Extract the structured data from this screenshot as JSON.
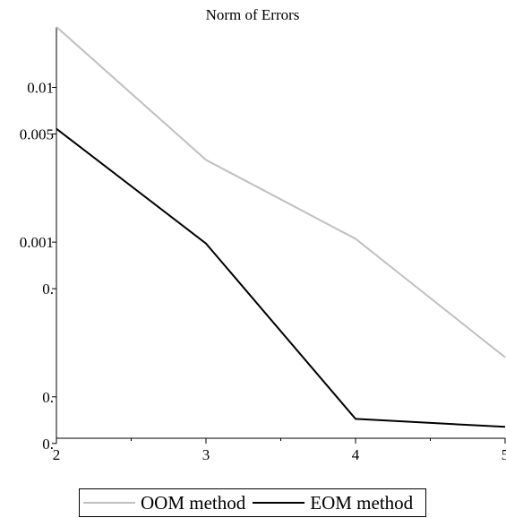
{
  "chart_data": {
    "type": "line",
    "title": "Norm of Errors",
    "xlabel": "",
    "ylabel": "",
    "x": [
      2,
      3,
      4,
      5
    ],
    "xlim": [
      2,
      5
    ],
    "xticks": [
      "2",
      "3",
      "4",
      "5"
    ],
    "yscale": "log",
    "ylim": [
      5.4e-05,
      0.0246
    ],
    "yticks": [
      {
        "value": 0.01,
        "label": "0.01"
      },
      {
        "value": 0.005,
        "label": "0.005"
      },
      {
        "value": 0.001,
        "label": "0.001"
      },
      {
        "value": 0.0005,
        "label": "0."
      },
      {
        "value": 0.0001,
        "label": "0."
      },
      {
        "value": 5e-05,
        "label": "0."
      }
    ],
    "series": [
      {
        "name": "OOM method",
        "color": "#c0c0c0",
        "values": [
          0.0246,
          0.0034,
          0.00105,
          0.00018
        ]
      },
      {
        "name": "EOM method",
        "color": "#000000",
        "values": [
          0.0054,
          0.00098,
          7.2e-05,
          6.4e-05
        ]
      }
    ],
    "grid": false,
    "legend_position": "bottom-center"
  }
}
